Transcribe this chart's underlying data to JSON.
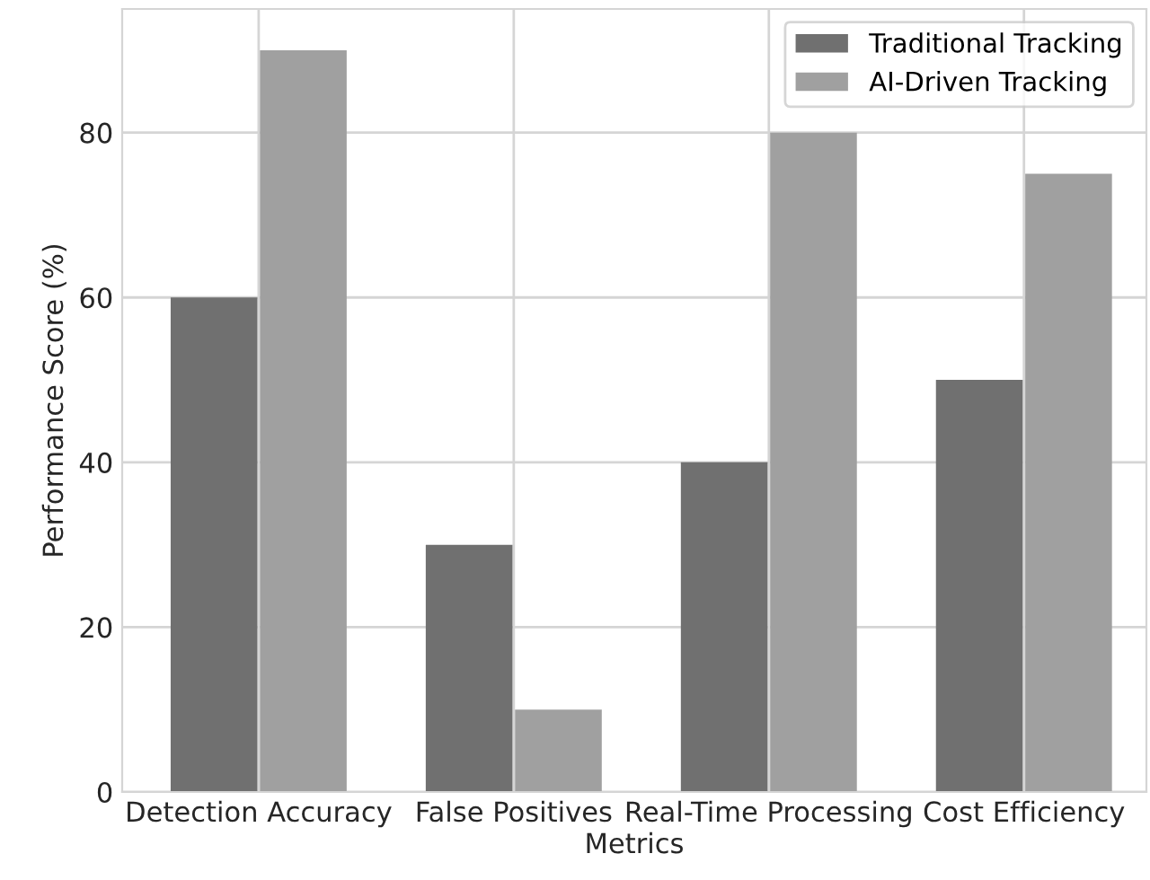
{
  "chart_data": {
    "type": "bar",
    "xlabel": "Metrics",
    "ylabel": "Performance Score (%)",
    "categories": [
      "Detection Accuracy",
      "False Positives",
      "Real-Time Processing",
      "Cost Efficiency"
    ],
    "series": [
      {
        "name": "Traditional Tracking",
        "color": "#707070",
        "values": [
          60,
          30,
          40,
          50
        ]
      },
      {
        "name": "AI-Driven Tracking",
        "color": "#a0a0a0",
        "values": [
          90,
          10,
          80,
          75
        ]
      }
    ],
    "ylim": [
      0,
      95
    ],
    "yticks": [
      0,
      20,
      40,
      60,
      80
    ],
    "grid": true,
    "legend": "top right"
  }
}
